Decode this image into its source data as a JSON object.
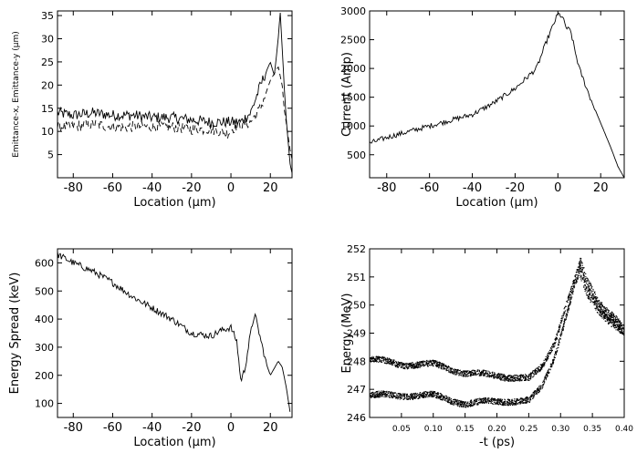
{
  "chart_data": [
    {
      "type": "line",
      "xlabel": "Location (μm)",
      "ylabel": "Emittance-x, Emittance-y (μm)",
      "xlim": [
        -88,
        31
      ],
      "ylim": [
        0,
        36
      ],
      "xticks": [
        -80,
        -60,
        -40,
        -20,
        0,
        20
      ],
      "yticks": [
        5,
        10,
        15,
        20,
        25,
        30,
        35
      ],
      "grid": false,
      "series": [
        {
          "style": "solid",
          "x": [
            -88,
            -80,
            -70,
            -60,
            -50,
            -40,
            -30,
            -20,
            -10,
            0,
            5,
            10,
            15,
            20,
            22,
            24,
            25,
            26,
            27,
            28,
            29,
            30,
            31
          ],
          "y": [
            14,
            13.5,
            14,
            13.5,
            13.5,
            13,
            13,
            12.5,
            12,
            12,
            12,
            14,
            20,
            25,
            22,
            30,
            36,
            28,
            20,
            13,
            8,
            3,
            1
          ]
        },
        {
          "style": "dashed",
          "x": [
            -88,
            -80,
            -70,
            -60,
            -50,
            -40,
            -30,
            -20,
            -10,
            -2,
            2,
            10,
            15,
            20,
            24,
            26,
            27,
            28,
            29,
            30,
            31
          ],
          "y": [
            11,
            11,
            11.5,
            11,
            11,
            11,
            11,
            10.5,
            10.5,
            9.5,
            11,
            12,
            15,
            21,
            24,
            20,
            15,
            12,
            9,
            6,
            4
          ]
        }
      ]
    },
    {
      "type": "line",
      "xlabel": "Location (μm)",
      "ylabel": "Current (Amp)",
      "xlim": [
        -88,
        31
      ],
      "ylim": [
        100,
        3000
      ],
      "xticks": [
        -80,
        -60,
        -40,
        -20,
        0,
        20
      ],
      "yticks": [
        500,
        1000,
        1500,
        2000,
        2500,
        3000
      ],
      "grid": false,
      "series": [
        {
          "style": "solid",
          "x": [
            -88,
            -80,
            -70,
            -60,
            -50,
            -40,
            -30,
            -20,
            -10,
            -5,
            0,
            2,
            4,
            6,
            8,
            10,
            15,
            20,
            25,
            28,
            31
          ],
          "y": [
            700,
            800,
            900,
            1000,
            1100,
            1200,
            1400,
            1650,
            2000,
            2500,
            2950,
            2900,
            2700,
            2650,
            2300,
            2000,
            1500,
            1050,
            600,
            300,
            100
          ]
        }
      ]
    },
    {
      "type": "line",
      "xlabel": "Location (μm)",
      "ylabel": "Energy Spread (keV)",
      "xlim": [
        -88,
        31
      ],
      "ylim": [
        50,
        650
      ],
      "xticks": [
        -80,
        -60,
        -40,
        -20,
        0,
        20
      ],
      "yticks": [
        100,
        200,
        300,
        400,
        500,
        600
      ],
      "grid": false,
      "series": [
        {
          "style": "solid",
          "x": [
            -88,
            -80,
            -70,
            -60,
            -50,
            -40,
            -30,
            -20,
            -10,
            -5,
            0,
            3,
            5,
            7,
            10,
            12,
            15,
            18,
            20,
            24,
            26,
            28,
            30
          ],
          "y": [
            630,
            600,
            570,
            530,
            480,
            440,
            400,
            350,
            340,
            360,
            370,
            320,
            180,
            220,
            350,
            420,
            330,
            240,
            200,
            250,
            230,
            160,
            70
          ]
        }
      ]
    },
    {
      "type": "scatter",
      "xlabel": "-t (ps)",
      "ylabel": "Energy (MeV)",
      "xlim": [
        0.0,
        0.4
      ],
      "ylim": [
        246,
        252
      ],
      "xticks": [
        0.05,
        0.1,
        0.15,
        0.2,
        0.25,
        0.3,
        0.35,
        0.4
      ],
      "yticks": [
        246,
        247,
        248,
        249,
        250,
        251,
        252
      ],
      "grid": false,
      "series": [
        {
          "style": "dense-dots",
          "band": "upper",
          "x": [
            0.0,
            0.05,
            0.1,
            0.15,
            0.2,
            0.25,
            0.27,
            0.29,
            0.31,
            0.32,
            0.33,
            0.34,
            0.36,
            0.38,
            0.4
          ],
          "y": [
            248.1,
            247.9,
            247.9,
            247.6,
            247.5,
            247.4,
            247.8,
            248.7,
            250.2,
            250.8,
            251.5,
            250.8,
            250.0,
            249.6,
            249.1
          ]
        },
        {
          "style": "dense-dots",
          "band": "lower",
          "x": [
            0.0,
            0.05,
            0.1,
            0.15,
            0.2,
            0.25,
            0.27,
            0.29,
            0.31,
            0.32,
            0.33,
            0.34,
            0.36,
            0.38,
            0.4
          ],
          "y": [
            246.8,
            246.8,
            246.8,
            246.5,
            246.6,
            246.6,
            247.1,
            248.2,
            249.8,
            250.6,
            251.2,
            250.5,
            249.9,
            249.5,
            249.1
          ]
        }
      ]
    }
  ]
}
